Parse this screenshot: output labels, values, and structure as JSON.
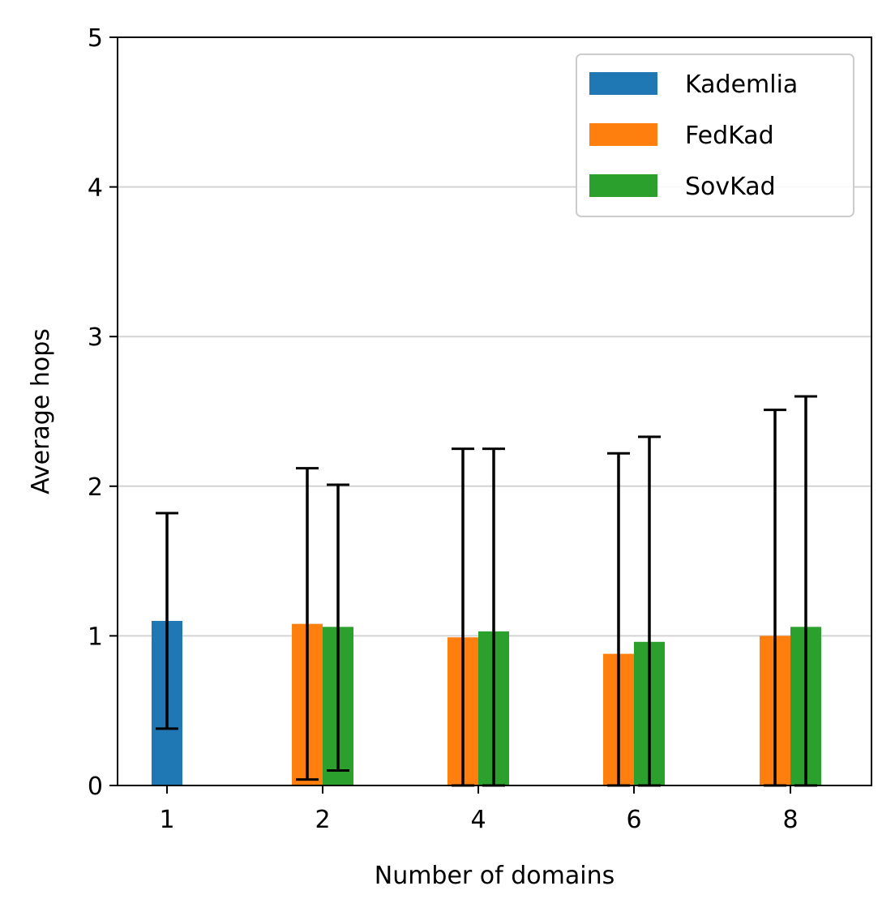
{
  "chart_data": {
    "type": "bar",
    "xlabel": "Number of domains",
    "ylabel": "Average hops",
    "categories": [
      "1",
      "2",
      "4",
      "6",
      "8"
    ],
    "ylim": [
      0,
      5
    ],
    "yticks": [
      0,
      1,
      2,
      3,
      4,
      5
    ],
    "grid": "horizontal",
    "legend_position": "top-right",
    "series": [
      {
        "name": "Kademlia",
        "color": "#1f77b4",
        "values": [
          1.1,
          null,
          null,
          null,
          null
        ],
        "error_low": [
          0.38,
          null,
          null,
          null,
          null
        ],
        "error_high": [
          1.82,
          null,
          null,
          null,
          null
        ]
      },
      {
        "name": "FedKad",
        "color": "#ff7f0e",
        "values": [
          null,
          1.08,
          0.99,
          0.88,
          1.0
        ],
        "error_low": [
          null,
          0.04,
          0.0,
          0.0,
          0.0
        ],
        "error_high": [
          null,
          2.12,
          2.25,
          2.22,
          2.51
        ]
      },
      {
        "name": "SovKad",
        "color": "#2ca02c",
        "values": [
          null,
          1.06,
          1.03,
          0.96,
          1.06
        ],
        "error_low": [
          null,
          0.1,
          0.0,
          0.0,
          0.0
        ],
        "error_high": [
          null,
          2.01,
          2.25,
          2.33,
          2.6
        ]
      }
    ]
  }
}
